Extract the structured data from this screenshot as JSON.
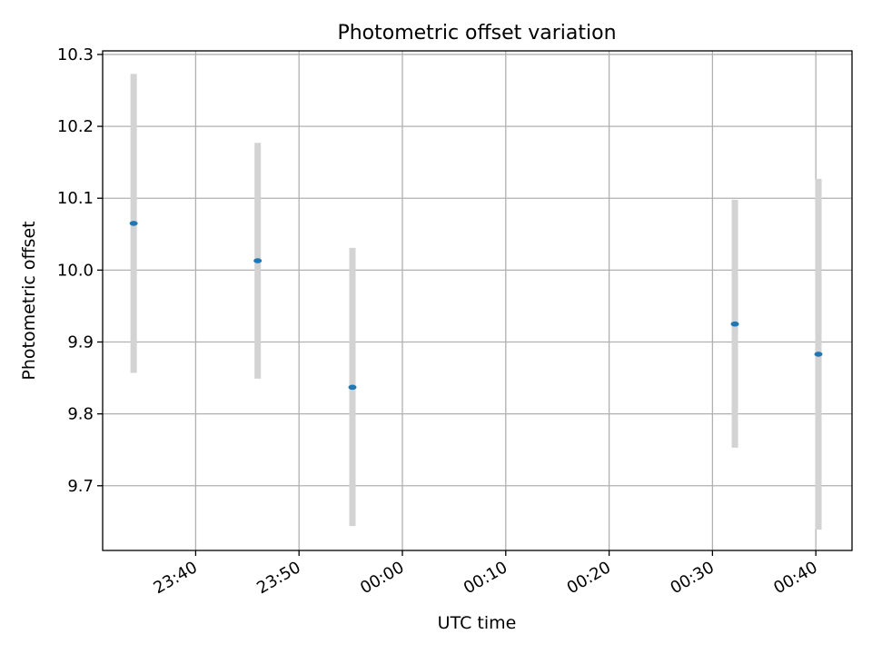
{
  "chart_data": {
    "type": "scatter",
    "title": "Photometric offset variation",
    "xlabel": "UTC time",
    "ylabel": "Photometric offset",
    "xlim": [
      "23:31:00",
      "00:43:30"
    ],
    "ylim": [
      9.61,
      10.305
    ],
    "xticks": [
      "23:40",
      "23:50",
      "00:00",
      "00:10",
      "00:20",
      "00:30",
      "00:40"
    ],
    "yticks": [
      "9.7",
      "9.8",
      "9.9",
      "10.0",
      "10.1",
      "10.2",
      "10.3"
    ],
    "grid": true,
    "points": [
      {
        "time": "23:34:00",
        "value": 10.065,
        "err_low": 9.857,
        "err_high": 10.273
      },
      {
        "time": "23:46:00",
        "value": 10.013,
        "err_low": 9.849,
        "err_high": 10.177
      },
      {
        "time": "23:55:10",
        "value": 9.837,
        "err_low": 9.644,
        "err_high": 10.031
      },
      {
        "time": "00:32:10",
        "value": 9.925,
        "err_low": 9.753,
        "err_high": 10.098
      },
      {
        "time": "00:40:15",
        "value": 9.883,
        "err_low": 9.639,
        "err_high": 10.127
      }
    ],
    "colors": {
      "point": "#1f77b4",
      "errorbar": "#d3d3d3",
      "grid": "#b0b0b0"
    }
  }
}
